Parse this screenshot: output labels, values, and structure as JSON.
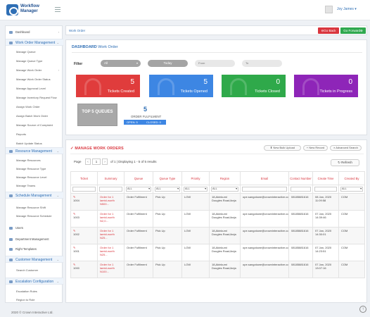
{
  "app": {
    "logo_line1": "Workflow",
    "logo_line2": "Manager",
    "user": "Joy James"
  },
  "sidebar": {
    "dashboard": "Dashboard",
    "sections": [
      {
        "label": "Work Order Management",
        "items": [
          "Manage Queue",
          "Manage Queue Type",
          "Manage Work Order",
          "Manage Work Order Status",
          "Manage Approval Level",
          "Manage Inventory Request Flow",
          "Assign Work Order",
          "Assign Batch Work Order",
          "Manage Source of Complaint",
          "Reports",
          "Batch Update Status"
        ]
      },
      {
        "label": "Resource Management",
        "items": [
          "Manage Resources",
          "Manage Resource Type",
          "Manage Resource Level",
          "Manage Teams"
        ]
      },
      {
        "label": "Schedule Management",
        "items": [
          "Manage Resource Shift",
          "Manage Resource Schedule"
        ]
      }
    ],
    "users": "Users",
    "department": "Department Management",
    "rights": "Right Templates",
    "customer": {
      "label": "Customer Management",
      "items": [
        "Search Customer"
      ]
    },
    "escalation": {
      "label": "Escalation Configuration",
      "items": [
        "Escalation Rules",
        "Region to Role"
      ]
    }
  },
  "footer": "2020 © Crown Interactive Ltd.",
  "breadcrumb": "Work Order",
  "nav": {
    "back": "Go Back",
    "forward": "Go Forward"
  },
  "dashboard": {
    "title_bold": "DASHBOARD",
    "title_rest": "Work Order",
    "filter_label": "Filter",
    "filter_select": "All",
    "today": "Today",
    "from_placeholder": "From",
    "to_placeholder": "To",
    "tiles": [
      {
        "count": "5",
        "label": "Tickets Created",
        "color": "#e03c3c"
      },
      {
        "count": "5",
        "label": "Tickets Opened",
        "color": "#3d86e3"
      },
      {
        "count": "0",
        "label": "Tickets Closed",
        "color": "#2fa94a"
      },
      {
        "count": "0",
        "label": "Tickets in Progress",
        "color": "#8e25b8"
      }
    ],
    "top5": "TOP 5 QUEUES",
    "fulfilment": {
      "count": "5",
      "label": "ORDER FULFILMENT",
      "open": "OPEN: 5",
      "closed": "CLOSED: 0"
    }
  },
  "manage": {
    "title": "MANAGE WORK ORDERS",
    "btn_bulk": "New Bulk Upload",
    "btn_new": "New Record",
    "btn_search": "Advanced Search",
    "page_label": "Page",
    "page_value": "1",
    "page_info": "of 1 | Displaying 1 - 5 of 5 results",
    "refresh": "Refresh",
    "columns": [
      "Ticket",
      "Summary",
      "Queue",
      "Queue Type",
      "Priority",
      "Region",
      "Email",
      "Contact Number",
      "Create Time",
      "Created By"
    ],
    "filter_all": "ALL",
    "rows": [
      {
        "ticket": "1004",
        "summary": "Order for 1 lamtd-worth N500...",
        "queue": "Order Fulfilment",
        "queue_type": "Pick Up",
        "priority": "LOW",
        "region": "18,Akinkumi Dougles Road,ikeja",
        "email": "ope.sangotowe@crowninteractive.com",
        "contact": "08185881616",
        "created": "08 Jan, 2020 11:09:58",
        "by": "COM"
      },
      {
        "ticket": "1003",
        "summary": "Order for 1 lamtd-worth N2,0...",
        "queue": "Order Fulfilment",
        "queue_type": "Pick Up",
        "priority": "LOW",
        "region": "18,Akinkumi Dougles Road,ikeja",
        "email": "ope.sangotowe@crowninteractive.com",
        "contact": "08185881616",
        "created": "07 Jan, 2020 14:39:46",
        "by": "COM"
      },
      {
        "ticket": "1002",
        "summary": "Order for 1 lamtd-worth N25...",
        "queue": "Order Fulfilment",
        "queue_type": "Pick Up",
        "priority": "LOW",
        "region": "18,Akinkumi Dougles Road,ikeja",
        "email": "ope.sangotowe@crowninteractive.com",
        "contact": "08185881616",
        "created": "07 Jan, 2020 14:30:01",
        "by": "COM"
      },
      {
        "ticket": "1001",
        "summary": "Order for 1 lamtd-worth N25...",
        "queue": "Order Fulfilment",
        "queue_type": "Pick Up",
        "priority": "LOW",
        "region": "18,Akinkumi Dougles Road,ikeja",
        "email": "ope.sangotowe@crowninteractive.com",
        "contact": "08185881616",
        "created": "07 Jan, 2020 14:23:51",
        "by": "COM"
      },
      {
        "ticket": "1000",
        "summary": "Order for 1 lamtd-worth N100...",
        "queue": "Order Fulfilment",
        "queue_type": "Pick Up",
        "priority": "LOW",
        "region": "18,Akinkumi Dougles Road,ikeja",
        "email": "ope.sangotowe@crowninteractive.com",
        "contact": "08185881616",
        "created": "07 Jan, 2020 13:07:16",
        "by": "COM"
      }
    ]
  }
}
